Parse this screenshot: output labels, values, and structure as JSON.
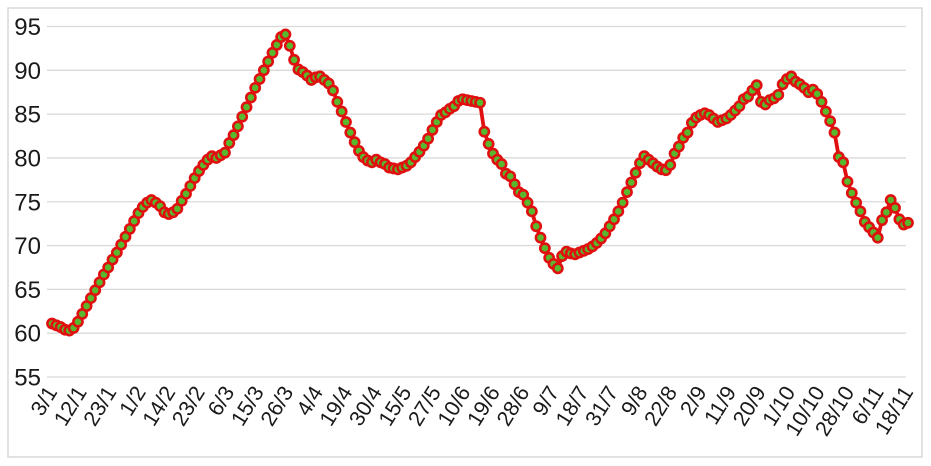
{
  "chart_data": {
    "type": "line",
    "title": "",
    "xlabel": "",
    "ylabel": "",
    "legend": "none",
    "grid": "horizontal",
    "ylim": [
      55,
      95
    ],
    "y_ticks": [
      95,
      90,
      85,
      80,
      75,
      70,
      65,
      60,
      55
    ],
    "x_labels": [
      "3/1",
      "12/1",
      "23/1",
      "1/2",
      "14/2",
      "23/2",
      "6/3",
      "15/3",
      "26/3",
      "4/4",
      "19/4",
      "30/4",
      "15/5",
      "27/5",
      "10/6",
      "19/6",
      "28/6",
      "9/7",
      "18/7",
      "31/7",
      "9/8",
      "22/8",
      "2/9",
      "11/9",
      "20/9",
      "1/10",
      "10/10",
      "28/10",
      "6/11",
      "18/11"
    ],
    "values": [
      61.1,
      60.9,
      60.7,
      60.4,
      60.3,
      60.6,
      61.3,
      62.2,
      63.1,
      64.0,
      64.9,
      65.8,
      66.7,
      67.5,
      68.4,
      69.2,
      70.1,
      71.0,
      71.9,
      72.8,
      73.7,
      74.4,
      74.9,
      75.2,
      74.9,
      74.5,
      73.8,
      73.6,
      73.8,
      74.2,
      75.1,
      75.9,
      76.8,
      77.7,
      78.5,
      79.2,
      79.8,
      80.2,
      80.0,
      80.3,
      80.6,
      81.7,
      82.6,
      83.6,
      84.7,
      85.8,
      86.9,
      88.0,
      89.0,
      90.0,
      91.0,
      92.0,
      92.9,
      93.8,
      94.1,
      92.8,
      91.2,
      90.1,
      89.8,
      89.4,
      88.9,
      89.2,
      89.3,
      88.9,
      88.5,
      87.7,
      86.4,
      85.3,
      84.1,
      82.9,
      81.8,
      80.8,
      80.1,
      79.7,
      79.5,
      79.8,
      79.5,
      79.3,
      78.9,
      78.8,
      78.7,
      78.9,
      79.1,
      79.5,
      80.1,
      80.7,
      81.4,
      82.2,
      83.2,
      84.1,
      84.9,
      85.2,
      85.6,
      85.9,
      86.5,
      86.7,
      86.6,
      86.5,
      86.4,
      86.3,
      83.0,
      81.6,
      80.5,
      79.8,
      79.3,
      78.2,
      77.9,
      77.0,
      76.1,
      75.8,
      74.9,
      73.9,
      72.2,
      70.9,
      69.7,
      68.6,
      67.9,
      67.4,
      68.8,
      69.3,
      69.1,
      69.0,
      69.2,
      69.4,
      69.6,
      69.9,
      70.3,
      70.8,
      71.4,
      72.2,
      73.0,
      73.9,
      74.9,
      76.1,
      77.2,
      78.3,
      79.4,
      80.2,
      79.8,
      79.4,
      79.0,
      78.7,
      78.6,
      79.2,
      80.5,
      81.3,
      82.3,
      82.9,
      84.0,
      84.6,
      84.9,
      85.1,
      84.9,
      84.5,
      84.1,
      84.3,
      84.5,
      84.9,
      85.4,
      85.9,
      86.7,
      87.0,
      87.7,
      88.3,
      86.4,
      86.1,
      86.6,
      86.8,
      87.2,
      88.4,
      89.0,
      89.3,
      88.7,
      88.4,
      88.0,
      87.5,
      87.8,
      87.3,
      86.4,
      85.3,
      84.2,
      82.9,
      80.1,
      79.5,
      77.3,
      76.0,
      74.9,
      73.9,
      72.7,
      72.1,
      71.5,
      70.9,
      72.9,
      73.8,
      75.2,
      74.3,
      73.0,
      72.4,
      72.6
    ],
    "colors": {
      "line": "#E01010",
      "marker_fill": "#58B82E",
      "marker_outline": "#E01010",
      "gridline": "#D9D9D9",
      "chart_border": "#D6D6D6",
      "axis_text": "#1A1A1A",
      "background": "#FFFFFF"
    }
  }
}
